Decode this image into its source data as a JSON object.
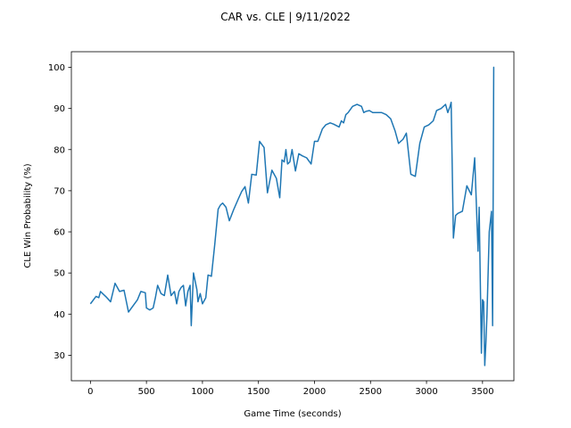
{
  "chart_data": {
    "type": "line",
    "title": "CAR vs. CLE | 9/11/2022",
    "xlabel": "Game Time (seconds)",
    "ylabel": "CLE Win Probability (%)",
    "xlim": [
      -170,
      3780
    ],
    "ylim": [
      23.8,
      103.8
    ],
    "xticks": [
      0,
      500,
      1000,
      1500,
      2000,
      2500,
      3000,
      3500
    ],
    "yticks": [
      30,
      40,
      50,
      60,
      70,
      80,
      90,
      100
    ],
    "grid": false,
    "line_color": "#1f77b4",
    "series": [
      {
        "x": [
          0,
          50,
          75,
          90,
          140,
          180,
          220,
          260,
          300,
          340,
          380,
          420,
          450,
          490,
          500,
          530,
          560,
          580,
          600,
          630,
          660,
          690,
          720,
          750,
          770,
          790,
          810,
          830,
          850,
          870,
          890,
          900,
          920,
          950,
          960,
          980,
          1000,
          1030,
          1050,
          1080,
          1110,
          1140,
          1160,
          1180,
          1210,
          1240,
          1280,
          1320,
          1350,
          1380,
          1410,
          1440,
          1480,
          1510,
          1550,
          1580,
          1620,
          1660,
          1690,
          1710,
          1730,
          1745,
          1760,
          1780,
          1800,
          1830,
          1860,
          1890,
          1930,
          1970,
          2000,
          2030,
          2070,
          2100,
          2140,
          2170,
          2220,
          2240,
          2260,
          2280,
          2300,
          2340,
          2380,
          2420,
          2440,
          2460,
          2490,
          2520,
          2560,
          2600,
          2640,
          2680,
          2720,
          2750,
          2790,
          2820,
          2860,
          2900,
          2940,
          2980,
          3020,
          3060,
          3090,
          3130,
          3170,
          3190,
          3210,
          3220,
          3240,
          3260,
          3280,
          3320,
          3360,
          3400,
          3430,
          3460,
          3470,
          3490,
          3500,
          3510,
          3520,
          3530,
          3540,
          3560,
          3580,
          3590,
          3600,
          3605
        ],
        "y": [
          42.5,
          44.3,
          44.0,
          45.5,
          44.2,
          43.0,
          47.5,
          45.5,
          45.8,
          40.5,
          42.0,
          43.5,
          45.5,
          45.2,
          41.5,
          41.0,
          41.5,
          44.0,
          47.0,
          45.0,
          44.5,
          49.5,
          44.5,
          45.5,
          42.5,
          45.5,
          46.5,
          47.0,
          42.0,
          45.5,
          47.0,
          37.2,
          50.0,
          46.0,
          43.0,
          45.0,
          42.5,
          44.0,
          49.5,
          49.2,
          57.0,
          65.5,
          66.5,
          67.0,
          66.0,
          62.7,
          65.5,
          68.0,
          69.8,
          71.0,
          67.0,
          74.0,
          73.8,
          82.0,
          80.5,
          69.5,
          75.0,
          73.0,
          68.3,
          77.5,
          77.0,
          80.0,
          76.5,
          77.0,
          80.0,
          74.8,
          79.0,
          78.5,
          78.0,
          76.5,
          82.0,
          82.0,
          85.0,
          86.0,
          86.5,
          86.2,
          85.5,
          87.0,
          86.5,
          88.5,
          89.0,
          90.5,
          91.0,
          90.5,
          89.0,
          89.3,
          89.5,
          89.0,
          89.0,
          89.0,
          88.5,
          87.5,
          84.5,
          81.5,
          82.5,
          84.0,
          74.0,
          73.5,
          81.5,
          85.5,
          86.0,
          87.0,
          89.5,
          90.0,
          91.0,
          89.0,
          90.5,
          91.5,
          58.5,
          64.0,
          64.5,
          65.0,
          71.2,
          69.0,
          78.0,
          55.3,
          66.0,
          30.5,
          43.5,
          43.0,
          27.5,
          33.0,
          40.0,
          60.0,
          65.0,
          37.2,
          100.0,
          100.0
        ]
      }
    ]
  }
}
